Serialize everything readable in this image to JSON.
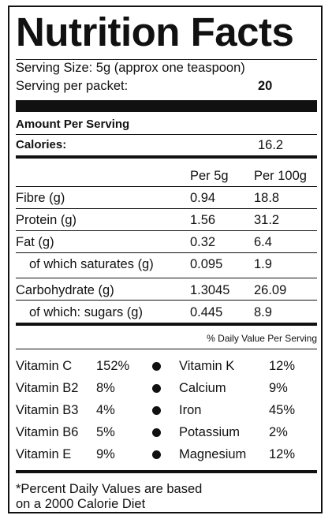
{
  "title": "Nutrition Facts",
  "serving": {
    "size_label": "Serving Size: 5g (approx one teaspoon)",
    "per_packet_label": "Serving per packet:",
    "per_packet_value": "20"
  },
  "amount_per_serving": "Amount Per Serving",
  "calories": {
    "label": "Calories:",
    "value": "16.2"
  },
  "columns": {
    "per_serving": "Per 5g",
    "per_100g": "Per 100g"
  },
  "nutrients": [
    {
      "label": "Fibre (g)",
      "per_5g": "0.94",
      "per_100g": "18.8"
    },
    {
      "label": "Protein (g)",
      "per_5g": "1.56",
      "per_100g": "31.2"
    },
    {
      "label": "Fat (g)",
      "per_5g": "0.32",
      "per_100g": "6.4"
    },
    {
      "label": "of which saturates (g)",
      "per_5g": "0.095",
      "per_100g": "1.9"
    },
    {
      "label": "Carbohydrate (g)",
      "per_5g": "1.3045",
      "per_100g": "26.09"
    },
    {
      "label": "of which: sugars (g)",
      "per_5g": "0.445",
      "per_100g": "8.9"
    }
  ],
  "daily_value_header": "% Daily Value Per Serving",
  "vitamins_left": [
    {
      "name": "Vitamin C",
      "value": "152%"
    },
    {
      "name": "Vitamin B2",
      "value": "8%"
    },
    {
      "name": "Vitamin B3",
      "value": "4%"
    },
    {
      "name": "Vitamin B6",
      "value": "5%"
    },
    {
      "name": "Vitamin E",
      "value": "9%"
    }
  ],
  "vitamins_right": [
    {
      "name": "Vitamin K",
      "value": "12%"
    },
    {
      "name": "Calcium",
      "value": "9%"
    },
    {
      "name": "Iron",
      "value": "45%"
    },
    {
      "name": "Potassium",
      "value": "2%"
    },
    {
      "name": "Magnesium",
      "value": "12%"
    }
  ],
  "footnote": {
    "line1": "*Percent Daily Values are based",
    "line2": "on a 2000 Calorie Diet"
  }
}
